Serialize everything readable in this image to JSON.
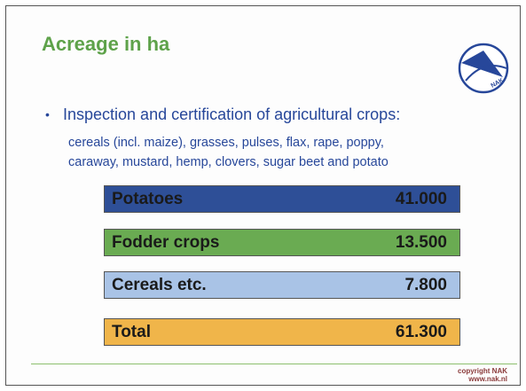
{
  "header": {
    "title": "Acreage in ha",
    "logo": "NAK"
  },
  "bullet": "Inspection and certification of agricultural crops:",
  "description": [
    "cereals (incl. maize), grasses, pulses, flax, rape, poppy,",
    "caraway, mustard, hemp, clovers, sugar beet and potato"
  ],
  "table": {
    "rows": [
      [
        "Potatoes",
        "41.000"
      ],
      [
        "Fodder crops",
        "13.500"
      ],
      [
        "Cereals etc.",
        "7.800"
      ],
      [
        "Total",
        "61.300"
      ]
    ]
  },
  "footer": [
    "copyright NAK",
    "www.nak.nl"
  ]
}
